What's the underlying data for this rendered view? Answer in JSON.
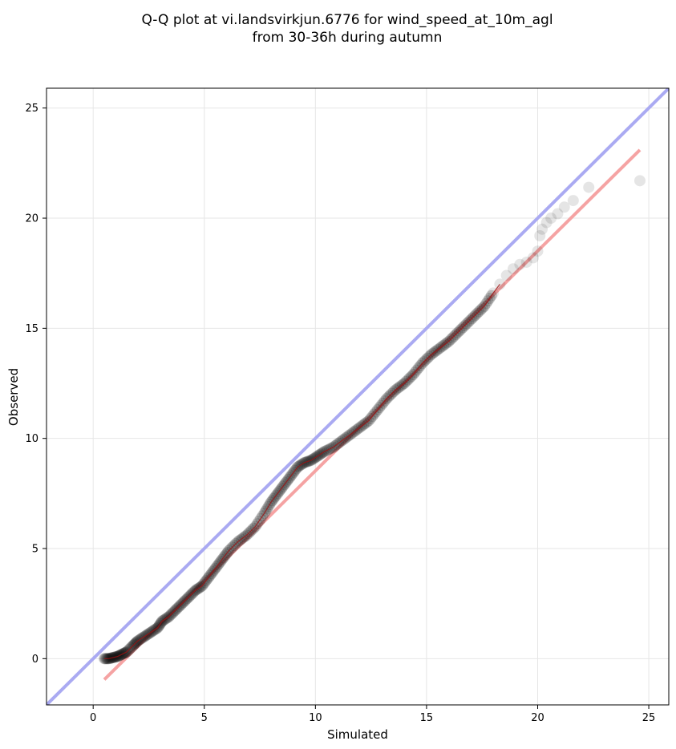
{
  "chart_data": {
    "type": "scatter",
    "title": "Q-Q plot at vi.landsvirkjun.6776 for wind_speed_at_10m_agl",
    "subtitle": "from 30-36h during autumn",
    "xlabel": "Simulated",
    "ylabel": "Observed",
    "xlim": [
      -2.1,
      25.9
    ],
    "ylim": [
      -2.1,
      25.9
    ],
    "xticks": [
      0,
      5,
      10,
      15,
      20,
      25
    ],
    "yticks": [
      0,
      5,
      10,
      15,
      20,
      25
    ],
    "grid": true,
    "colors": {
      "points": "#000000",
      "identity_line": "#aaaaf2",
      "fit_line": "#f5a3a3",
      "smooth_line": "#a01010"
    },
    "identity_line": {
      "x": [
        -2.1,
        25.9
      ],
      "y": [
        -2.1,
        25.9
      ]
    },
    "fit_line": {
      "x": [
        0.5,
        24.6
      ],
      "y": [
        -0.95,
        23.1
      ]
    },
    "quantiles": {
      "x": [
        0.5,
        0.7,
        0.9,
        1.1,
        1.3,
        1.5,
        1.8,
        2.0,
        2.3,
        2.6,
        2.9,
        3.1,
        3.4,
        3.7,
        4.0,
        4.3,
        4.6,
        4.9,
        5.2,
        5.5,
        5.8,
        6.1,
        6.5,
        6.9,
        7.3,
        7.7,
        8.0,
        8.3,
        8.6,
        8.9,
        9.2,
        9.5,
        9.8,
        10.1,
        10.4,
        10.8,
        11.2,
        11.6,
        12.0,
        12.4,
        12.8,
        13.2,
        13.6,
        14.0,
        14.4,
        14.8,
        15.2,
        15.6,
        16.0,
        16.4,
        16.8,
        17.2,
        17.6,
        18.0,
        18.3,
        18.6,
        18.9,
        19.2,
        19.5,
        19.8,
        20.0,
        20.1,
        20.2,
        20.4,
        20.6,
        20.9,
        21.2,
        21.6,
        22.3,
        24.6
      ],
      "y": [
        0.0,
        0.0,
        0.05,
        0.1,
        0.2,
        0.3,
        0.6,
        0.8,
        1.0,
        1.2,
        1.4,
        1.7,
        1.9,
        2.2,
        2.5,
        2.8,
        3.1,
        3.3,
        3.7,
        4.1,
        4.5,
        4.9,
        5.3,
        5.6,
        6.0,
        6.6,
        7.1,
        7.5,
        7.9,
        8.3,
        8.7,
        8.9,
        9.0,
        9.2,
        9.4,
        9.6,
        9.9,
        10.2,
        10.5,
        10.8,
        11.3,
        11.8,
        12.2,
        12.5,
        12.9,
        13.4,
        13.8,
        14.1,
        14.4,
        14.8,
        15.2,
        15.6,
        16.0,
        16.6,
        17.0,
        17.4,
        17.7,
        17.9,
        18.0,
        18.2,
        18.5,
        19.2,
        19.5,
        19.8,
        20.0,
        20.2,
        20.5,
        20.8,
        21.4,
        21.7
      ]
    }
  }
}
